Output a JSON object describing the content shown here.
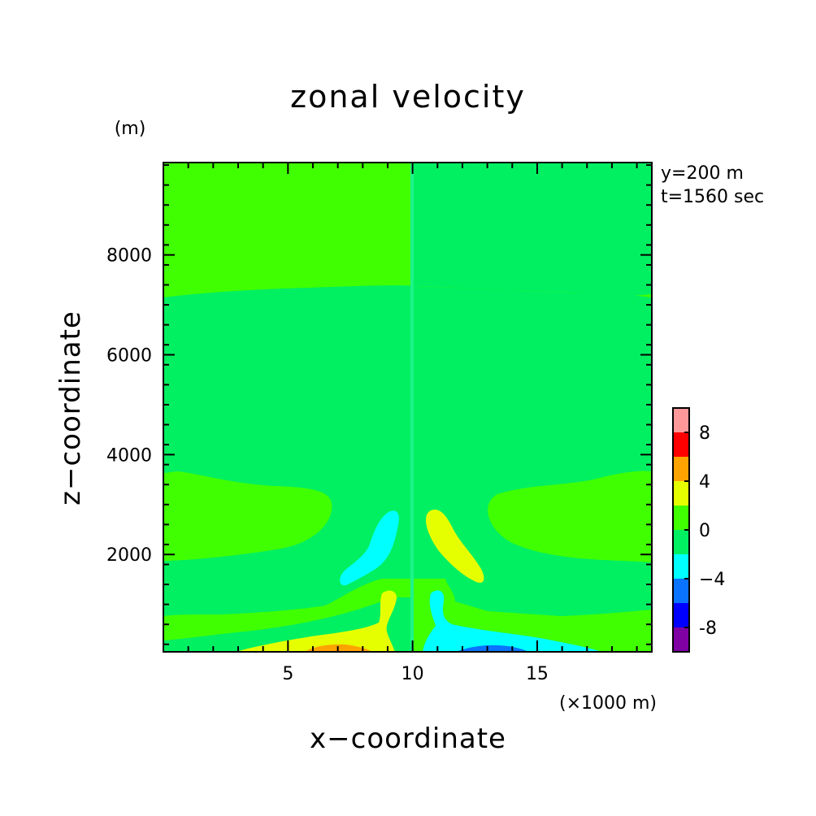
{
  "chart_data": {
    "type": "heatmap",
    "title": "zonal velocity",
    "xlabel": "x−coordinate",
    "ylabel": "z−coordinate",
    "x_unit": "(×1000 m)",
    "y_unit": "(m)",
    "annotations": [
      "y=200 m",
      "t=1560 sec"
    ],
    "xlim": [
      0,
      19.6
    ],
    "ylim": [
      50,
      9850
    ],
    "x_ticks": [
      5,
      10,
      15
    ],
    "x_tick_labels": [
      "5",
      "10",
      "15"
    ],
    "y_ticks": [
      2000,
      4000,
      6000,
      8000
    ],
    "y_tick_labels": [
      "2000",
      "4000",
      "6000",
      "8000"
    ],
    "colorbar": {
      "levels": [
        -10,
        -8,
        -6,
        -4,
        -2,
        0,
        2,
        4,
        6,
        8,
        10
      ],
      "tick_labels": [
        "-8",
        "−4",
        "0",
        "4",
        "8"
      ],
      "tick_values": [
        -8,
        -4,
        0,
        4,
        8
      ],
      "colors": [
        "#7f00a3",
        "#0000ff",
        "#0a73ff",
        "#00ffff",
        "#00f062",
        "#40ff00",
        "#e6ff00",
        "#ffa300",
        "#ff0000",
        "#ff9999"
      ]
    },
    "regions": [
      {
        "band": "0 to 2",
        "color": "#40ff00",
        "description": "upper-left domain above ~7300 m and surface bands"
      },
      {
        "band": "-2 to 0",
        "color": "#00f062",
        "description": "right half above ~7400 m and mid-level interior"
      },
      {
        "band": "2 to 4",
        "color": "#e6ff00",
        "description": "yellow cores near x=9 and x=11.5 km"
      },
      {
        "band": "4 to 6",
        "color": "#ffa300",
        "description": "near-surface maximum around x=7.5 km"
      },
      {
        "band": "-4 to -2",
        "color": "#00ffff",
        "description": "cyan cores left of center and near-surface right"
      },
      {
        "band": "-6 to -4",
        "color": "#0a73ff",
        "description": "near-surface minimum around x=12.5 km"
      }
    ]
  }
}
